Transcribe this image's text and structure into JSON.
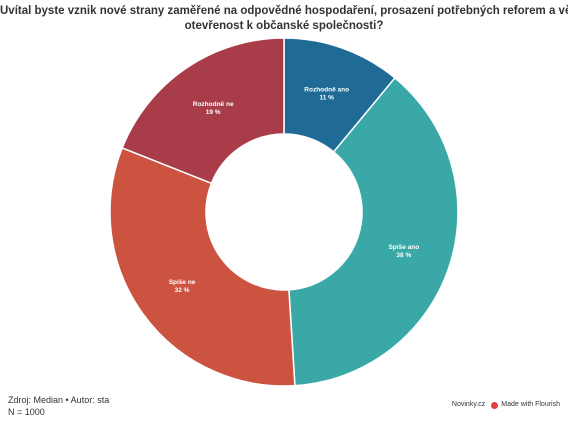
{
  "title_lines": [
    "Uvítal byste vznik nové strany zaměřené na odpovědné hospodaření, prosazení potřebných reforem a větší",
    "otevřenost k občanské společnosti?"
  ],
  "footer": {
    "source": "Zdroj: Median • Autor: sta",
    "sample": "N = 1000",
    "brand": "Novinky.cz",
    "made_with": "Made with Flourish"
  },
  "chart_data": {
    "type": "pie",
    "donut": true,
    "title": "Uvítal byste vznik nové strany zaměřené na odpovědné hospodaření, prosazení potřebných reforem a větší otevřenost k občanské společnosti?",
    "slices": [
      {
        "label": "Rozhodně ano",
        "value": 11,
        "value_label": "11 %",
        "color": "#1f6b96"
      },
      {
        "label": "Spíše ano",
        "value": 38,
        "value_label": "38 %",
        "color": "#3aa8a6"
      },
      {
        "label": "Spíše ne",
        "value": 32,
        "value_label": "32 %",
        "color": "#cc5340"
      },
      {
        "label": "Rozhodně ne",
        "value": 19,
        "value_label": "19 %",
        "color": "#a83c48"
      }
    ]
  }
}
